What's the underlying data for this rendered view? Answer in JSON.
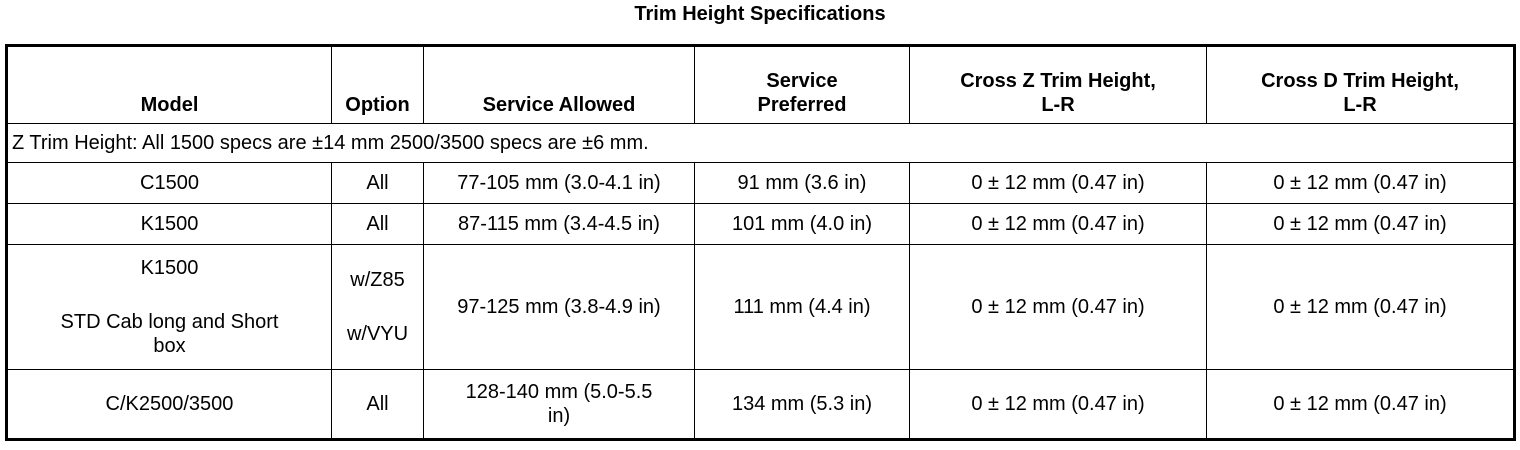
{
  "title": "Trim Height Specifications",
  "table": {
    "header": [
      "Model",
      "Option",
      "Service Allowed",
      [
        "Service",
        "Preferred"
      ],
      [
        "Cross Z Trim Height,",
        "L-R"
      ],
      [
        "Cross D Trim Height,",
        "L-R"
      ]
    ],
    "note": "Z Trim Height: All 1500 specs are ±14 mm 2500/3500 specs are ±6 mm.",
    "rows": [
      [
        "C1500",
        "All",
        "77-105 mm (3.0-4.1 in)",
        "91 mm (3.6 in)",
        "0 ± 12 mm (0.47 in)",
        "0 ± 12 mm (0.47 in)"
      ],
      [
        "K1500",
        "All",
        "87-115 mm (3.4-4.5 in)",
        "101 mm (4.0 in)",
        "0 ± 12 mm (0.47 in)",
        "0 ± 12 mm (0.47 in)"
      ],
      [
        [
          "K1500",
          "STD Cab long and Short",
          "box"
        ],
        [
          "w/Z85",
          "w/VYU"
        ],
        "97-125 mm (3.8-4.9 in)",
        "111 mm (4.4 in)",
        "0 ± 12 mm (0.47 in)",
        "0 ± 12 mm (0.47 in)"
      ],
      [
        "C/K2500/3500",
        "All",
        [
          "128-140 mm (5.0-5.5",
          "in)"
        ],
        "134 mm (5.3 in)",
        "0 ± 12 mm (0.47 in)",
        "0 ± 12 mm (0.47 in)"
      ]
    ]
  }
}
